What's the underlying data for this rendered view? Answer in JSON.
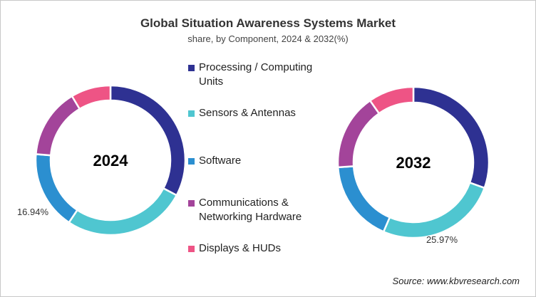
{
  "chart_data": {
    "type": "pie",
    "title": "Global Situation Awareness Systems Market",
    "subtitle": "share, by Component, 2024 & 2032(%)",
    "legend_position": "center",
    "categories": [
      "Processing / Computing Units",
      "Sensors & Antennas",
      "Software",
      "Communications & Networking Hardware",
      "Displays & HUDs"
    ],
    "colors": [
      "#2e3192",
      "#4fc6d0",
      "#2b8fd0",
      "#a3449a",
      "#ee5485"
    ],
    "series": [
      {
        "name": "2024",
        "values": [
          32.76,
          26.6,
          16.94,
          15.1,
          8.6
        ],
        "labeled": {
          "index": 2,
          "text": "16.94%"
        }
      },
      {
        "name": "2032",
        "values": [
          30.5,
          25.97,
          17.5,
          16.3,
          9.73
        ],
        "labeled": {
          "index": 1,
          "text": "25.97%"
        }
      }
    ],
    "source": "Source: www.kbvresearch.com"
  }
}
